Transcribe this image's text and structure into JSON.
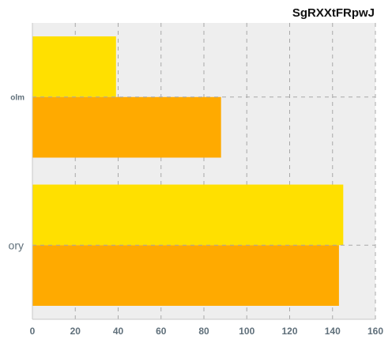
{
  "chart_data": {
    "type": "bar",
    "orientation": "horizontal",
    "title": "SgRXXtFRpwJ",
    "categories": [
      "olm",
      "ory"
    ],
    "series": [
      {
        "values": [
          39,
          145
        ],
        "color": "#FFE000"
      },
      {
        "values": [
          88,
          143
        ],
        "color": "#FFAA00"
      }
    ],
    "xlim": [
      0,
      160
    ],
    "xticks": [
      0,
      20,
      40,
      60,
      80,
      100,
      120,
      140,
      160
    ],
    "grid": true,
    "background": "#EEEEEE"
  }
}
